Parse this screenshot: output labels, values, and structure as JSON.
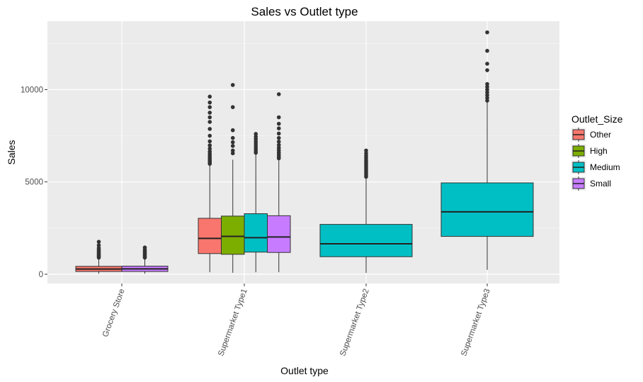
{
  "chart_data": {
    "type": "boxplot",
    "title": "Sales vs Outlet type",
    "xlabel": "Outlet type",
    "ylabel": "Sales",
    "ylim": [
      -500,
      13700
    ],
    "yticks": [
      0,
      5000,
      10000
    ],
    "ytick_labels": [
      "0",
      "5000",
      "10000"
    ],
    "categories": [
      "Grocery Store",
      "Supermarket Type1",
      "Supermarket Type2",
      "Supermarket Type3"
    ],
    "legend": {
      "title": "Outlet_Size",
      "position": "right",
      "entries": [
        {
          "name": "Other",
          "color": "#f8766d"
        },
        {
          "name": "High",
          "color": "#7cae00"
        },
        {
          "name": "Medium",
          "color": "#00bfc4"
        },
        {
          "name": "Small",
          "color": "#c77cff"
        }
      ]
    },
    "boxes": [
      {
        "category": "Grocery Store",
        "group": "Other",
        "q1": 150,
        "median": 280,
        "q3": 430,
        "whisker_low": 30,
        "whisker_high": 850,
        "outliers": [
          900,
          960,
          1010,
          1070,
          1130,
          1190,
          1260,
          1330,
          1420,
          1570,
          1760
        ]
      },
      {
        "category": "Grocery Store",
        "group": "Small",
        "q1": 150,
        "median": 290,
        "q3": 440,
        "whisker_low": 30,
        "whisker_high": 860,
        "outliers": [
          900,
          960,
          1020,
          1090,
          1160,
          1240,
          1330,
          1450
        ]
      },
      {
        "category": "Supermarket Type1",
        "group": "Other",
        "q1": 1120,
        "median": 1940,
        "q3": 3030,
        "whisker_low": 110,
        "whisker_high": 5900,
        "outliers": [
          5980,
          6060,
          6150,
          6240,
          6330,
          6430,
          6530,
          6650,
          6800,
          6980,
          7200,
          7500,
          7870,
          8250,
          8500,
          8750,
          9050,
          9300,
          9620
        ]
      },
      {
        "category": "Supermarket Type1",
        "group": "High",
        "q1": 1080,
        "median": 2050,
        "q3": 3150,
        "whisker_low": 80,
        "whisker_high": 6200,
        "outliers": [
          6550,
          6700,
          6950,
          7150,
          7380,
          7800,
          9050,
          10250
        ]
      },
      {
        "category": "Supermarket Type1",
        "group": "Medium",
        "q1": 1200,
        "median": 1980,
        "q3": 3280,
        "whisker_low": 110,
        "whisker_high": 6500,
        "outliers": [
          6580,
          6680,
          6800,
          6920,
          7050,
          7180,
          7320,
          7450,
          7600
        ]
      },
      {
        "category": "Supermarket Type1",
        "group": "Small",
        "q1": 1180,
        "median": 2020,
        "q3": 3170,
        "whisker_low": 110,
        "whisker_high": 6200,
        "outliers": [
          6280,
          6380,
          6490,
          6600,
          6720,
          6850,
          7000,
          7180,
          7380,
          7620,
          7900,
          8150,
          8500,
          9750
        ]
      },
      {
        "category": "Supermarket Type2",
        "group": "Medium",
        "q1": 950,
        "median": 1650,
        "q3": 2700,
        "whisker_low": 70,
        "whisker_high": 5200,
        "outliers": [
          5280,
          5380,
          5480,
          5580,
          5680,
          5780,
          5880,
          5980,
          6080,
          6180,
          6300,
          6420,
          6550,
          6700
        ]
      },
      {
        "category": "Supermarket Type3",
        "group": "Medium",
        "q1": 2050,
        "median": 3380,
        "q3": 4950,
        "whisker_low": 240,
        "whisker_high": 9300,
        "outliers": [
          9400,
          9550,
          9700,
          9850,
          10000,
          10150,
          10300,
          11050,
          11400,
          12100,
          13100
        ]
      }
    ]
  }
}
